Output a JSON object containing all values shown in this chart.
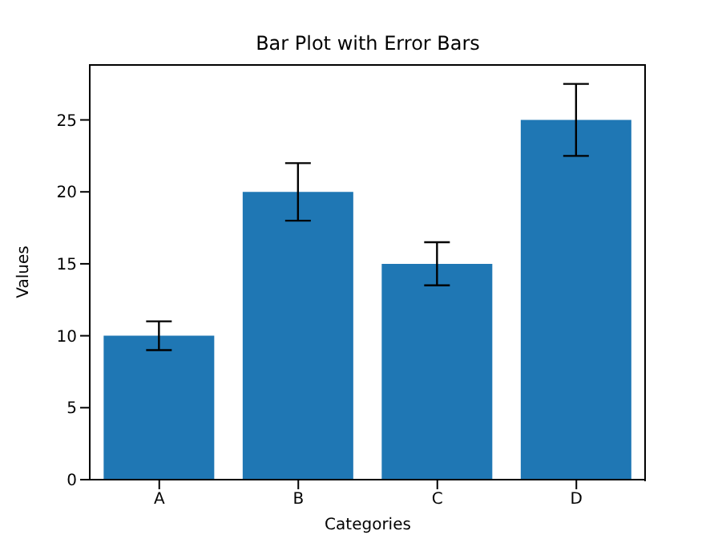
{
  "chart_data": {
    "type": "bar",
    "title": "Bar Plot with Error Bars",
    "xlabel": "Categories",
    "ylabel": "Values",
    "categories": [
      "A",
      "B",
      "C",
      "D"
    ],
    "values": [
      10,
      20,
      15,
      25
    ],
    "errors": [
      1,
      2,
      1.5,
      2.5
    ],
    "color": "#1f77b4",
    "ylim": [
      0,
      28.875
    ],
    "yticks": [
      0,
      5,
      10,
      15,
      20,
      25
    ],
    "grid": false
  }
}
